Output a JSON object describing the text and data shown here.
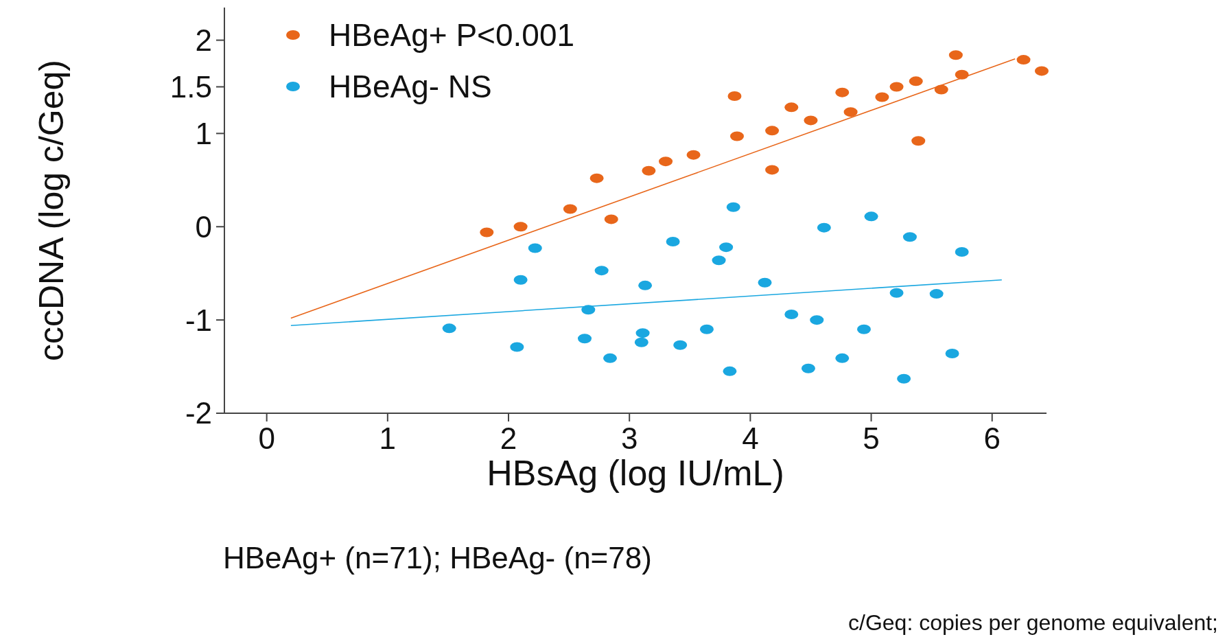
{
  "chart_data": {
    "type": "scatter",
    "xlabel": "HBsAg (log IU/mL)",
    "ylabel": "cccDNA (log c/Geq)",
    "xlim": [
      -0.35,
      6.45
    ],
    "xticks": [
      0,
      1,
      2,
      3,
      4,
      5,
      6
    ],
    "ylim": [
      -2,
      2.35
    ],
    "yticks": [
      2,
      1.5,
      1,
      0,
      -1,
      -2
    ],
    "grid": false,
    "legend": "top left",
    "marker": "circle",
    "annotations": [
      "HBeAg+ (n=71); HBeAg- (n=78)",
      "c/Geq: copies per genome equivalent;"
    ],
    "series": [
      {
        "name": "HBeAg+ P<0.001",
        "color": "#e8661a",
        "x": [
          1.82,
          2.1,
          2.51,
          2.85,
          2.73,
          3.16,
          3.3,
          3.53,
          3.87,
          3.89,
          4.18,
          4.18,
          4.34,
          4.5,
          4.76,
          4.83,
          5.09,
          5.21,
          5.37,
          5.39,
          5.58,
          5.7,
          5.75,
          6.26,
          6.41
        ],
        "values": [
          -0.06,
          0.0,
          0.19,
          0.08,
          0.52,
          0.6,
          0.7,
          0.77,
          1.4,
          0.97,
          1.03,
          0.61,
          1.28,
          1.14,
          1.44,
          1.23,
          1.39,
          1.5,
          1.56,
          0.92,
          1.47,
          1.84,
          1.63,
          1.79,
          1.67
        ]
      },
      {
        "name": "HBeAg- NS",
        "color": "#1aa7e0",
        "x": [
          1.51,
          2.22,
          2.1,
          2.07,
          2.66,
          2.63,
          2.84,
          2.77,
          3.13,
          3.11,
          3.1,
          3.36,
          3.42,
          3.64,
          3.74,
          3.8,
          3.86,
          3.83,
          4.12,
          4.34,
          4.55,
          4.48,
          4.61,
          4.76,
          4.94,
          5.0,
          5.21,
          5.27,
          5.32,
          5.54,
          5.67,
          5.75
        ],
        "values": [
          -1.09,
          -0.23,
          -0.57,
          -1.29,
          -0.89,
          -1.2,
          -1.41,
          -0.47,
          -0.63,
          -1.14,
          -1.24,
          -0.16,
          -1.27,
          -1.1,
          -0.36,
          -0.22,
          0.21,
          -1.55,
          -0.6,
          -0.94,
          -1.0,
          -1.52,
          -0.01,
          -1.41,
          -1.1,
          0.11,
          -0.71,
          -1.63,
          -0.11,
          -0.72,
          -1.36,
          -0.27
        ]
      },
      {
        "type": "line",
        "color": "#e8661a",
        "marker": "none",
        "x": [
          0.2,
          6.19
        ],
        "values": [
          -0.98,
          1.8
        ]
      },
      {
        "type": "line",
        "color": "#1aa7e0",
        "marker": "none",
        "x": [
          0.2,
          6.08
        ],
        "values": [
          -1.06,
          -0.57
        ]
      }
    ]
  }
}
